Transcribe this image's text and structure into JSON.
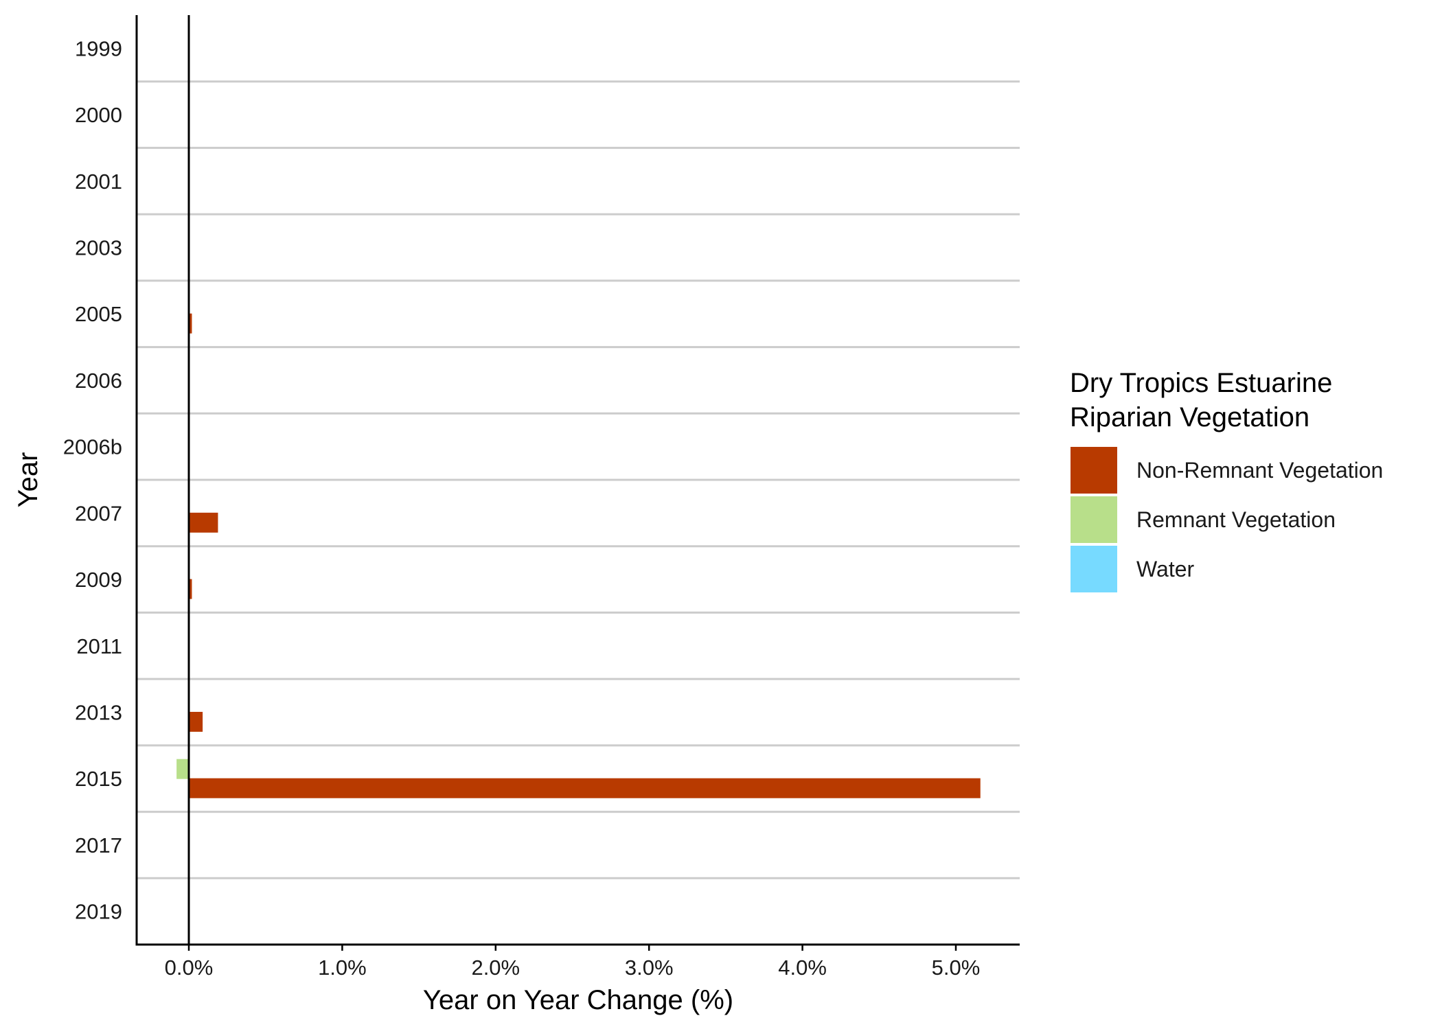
{
  "chart_data": {
    "type": "bar",
    "orientation": "horizontal",
    "title": "",
    "xlabel": "Year on Year Change (%)",
    "ylabel": "Year",
    "x_tick_labels": [
      "0.0%",
      "1.0%",
      "2.0%",
      "3.0%",
      "4.0%",
      "5.0%"
    ],
    "x_ticks": [
      0,
      1,
      2,
      3,
      4,
      5
    ],
    "xlim": [
      -0.34,
      5.4
    ],
    "categories": [
      "1999",
      "2000",
      "2001",
      "2003",
      "2005",
      "2006",
      "2006b",
      "2007",
      "2009",
      "2011",
      "2013",
      "2015",
      "2017",
      "2019"
    ],
    "legend": {
      "title_lines": [
        "Dry Tropics Estuarine",
        "Riparian Vegetation"
      ],
      "placement": "right"
    },
    "grid": "horizontal separators between categories",
    "series": [
      {
        "name": "Non-Remnant Vegetation",
        "color": "#B83A00",
        "values": [
          0,
          0,
          0,
          0,
          0.02,
          0,
          0,
          0.19,
          0.02,
          0,
          0.09,
          5.16,
          0,
          0
        ]
      },
      {
        "name": "Remnant Vegetation",
        "color": "#B8DF8A",
        "values": [
          0,
          0,
          0,
          0,
          0,
          0,
          0,
          0,
          0,
          0,
          0,
          -0.08,
          0,
          0
        ]
      },
      {
        "name": "Water",
        "color": "#77DAFF",
        "values": [
          0,
          0,
          0,
          0,
          0,
          0,
          0,
          0,
          0,
          0,
          0,
          0,
          0,
          0
        ]
      }
    ]
  }
}
